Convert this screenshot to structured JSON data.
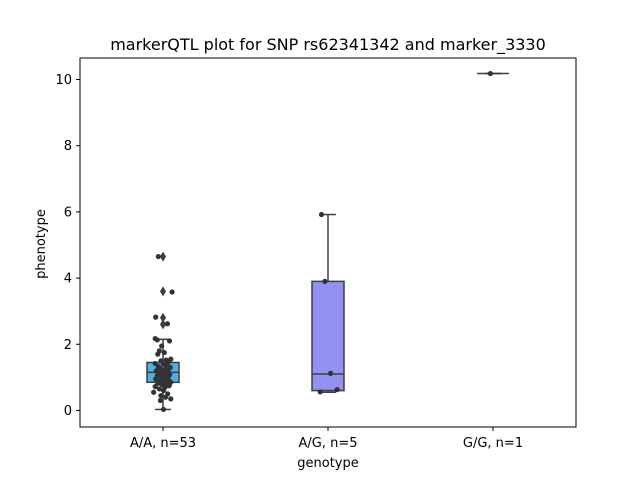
{
  "chart_data": {
    "type": "box",
    "title": "markerQTL plot for SNP rs62341342 and marker_3330",
    "xlabel": "genotype",
    "ylabel": "phenotype",
    "ylim": [
      -0.5,
      10.65
    ],
    "yticks": [
      0,
      2,
      4,
      6,
      8,
      10
    ],
    "ytick_labels": [
      "0",
      "2",
      "4",
      "6",
      "8",
      "10"
    ],
    "categories": [
      "A/A, n=53",
      "A/G, n=5",
      "G/G, n=1"
    ],
    "grid": false,
    "boxes": [
      {
        "category": "A/A, n=53",
        "color": "#4fb0e6",
        "q1": 0.85,
        "median": 1.15,
        "q3": 1.45,
        "whisker_low": 0.03,
        "whisker_high": 2.15,
        "outliers": [
          2.6,
          2.8,
          3.6,
          4.65
        ]
      },
      {
        "category": "A/G, n=5",
        "color": "#9292f2",
        "q1": 0.6,
        "median": 1.1,
        "q3": 3.9,
        "whisker_low": 0.55,
        "whisker_high": 5.92,
        "outliers": []
      },
      {
        "category": "G/G, n=1",
        "color": "#8a8a8a",
        "q1": 10.18,
        "median": 10.18,
        "q3": 10.18,
        "whisker_low": 10.18,
        "whisker_high": 10.18,
        "outliers": []
      }
    ],
    "points": [
      {
        "category": "A/A, n=53",
        "values": [
          4.65,
          3.58,
          2.82,
          2.62,
          2.17,
          2.13,
          2.1,
          1.95,
          1.8,
          1.75,
          1.7,
          1.55,
          1.52,
          1.5,
          1.48,
          1.42,
          1.4,
          1.38,
          1.33,
          1.3,
          1.27,
          1.25,
          1.22,
          1.2,
          1.18,
          1.15,
          1.12,
          1.1,
          1.08,
          1.05,
          1.02,
          1.0,
          0.98,
          0.95,
          0.92,
          0.9,
          0.88,
          0.85,
          0.82,
          0.8,
          0.78,
          0.75,
          0.72,
          0.7,
          0.65,
          0.6,
          0.55,
          0.5,
          0.45,
          0.4,
          0.35,
          0.3,
          0.03
        ],
        "offsets": [
          -0.18,
          0.35,
          -0.28,
          0.17,
          -0.3,
          -0.22,
          0.25,
          -0.05,
          -0.14,
          0.05,
          -0.2,
          0.3,
          0.12,
          -0.08,
          0.22,
          -0.3,
          0.02,
          0.16,
          -0.18,
          0.28,
          -0.1,
          0.09,
          0.2,
          -0.26,
          -0.02,
          0.14,
          -0.16,
          0.04,
          0.26,
          -0.22,
          0.1,
          -0.06,
          0.18,
          -0.28,
          0.22,
          -0.12,
          0.06,
          0.3,
          -0.2,
          0.12,
          -0.04,
          0.24,
          -0.3,
          0.08,
          -0.14,
          0.02,
          -0.36,
          0.18,
          -0.08,
          0.1,
          0.3,
          -0.1,
          0.02
        ]
      },
      {
        "category": "A/G, n=5",
        "values": [
          5.92,
          3.9,
          1.12,
          0.63,
          0.56
        ],
        "offsets": [
          -0.25,
          -0.12,
          0.1,
          0.35,
          -0.3
        ]
      },
      {
        "category": "G/G, n=1",
        "values": [
          10.18
        ],
        "offsets": [
          -0.1
        ]
      }
    ]
  }
}
